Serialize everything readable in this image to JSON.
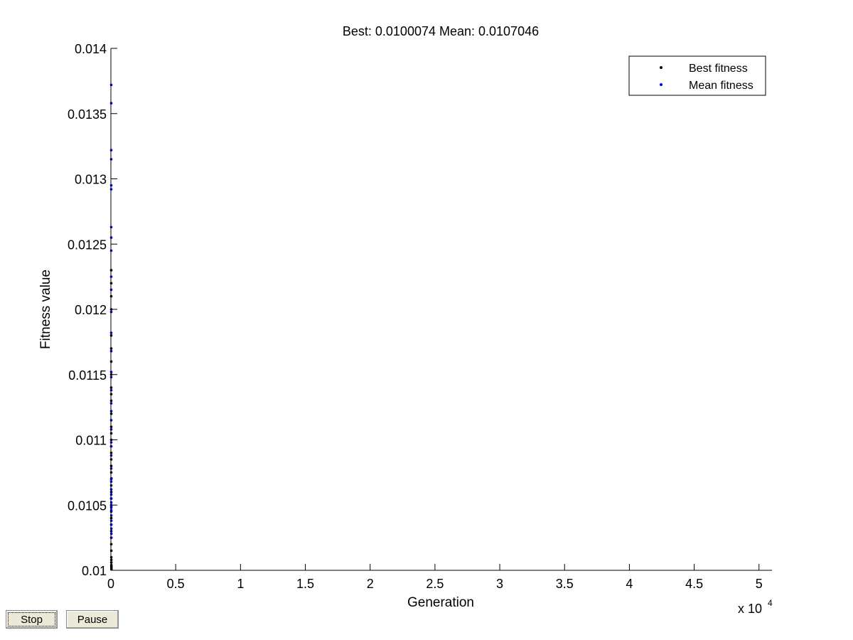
{
  "chart_data": {
    "type": "scatter",
    "title": "Best: 0.0100074 Mean: 0.0107046",
    "xlabel": "Generation",
    "ylabel": "Fitness value",
    "x_multiplier_label": "x 10",
    "x_multiplier_exponent": "4",
    "xlim": [
      0,
      51000
    ],
    "ylim": [
      0.01,
      0.014
    ],
    "xticks": [
      0,
      5000,
      10000,
      15000,
      20000,
      25000,
      30000,
      35000,
      40000,
      45000,
      50000
    ],
    "xtick_labels": [
      "0",
      "0.5",
      "1",
      "1.5",
      "2",
      "2.5",
      "3",
      "3.5",
      "4",
      "4.5",
      "5"
    ],
    "yticks": [
      0.01,
      0.0105,
      0.011,
      0.0115,
      0.012,
      0.0125,
      0.013,
      0.0135,
      0.014
    ],
    "ytick_labels": [
      "0.01",
      "0.0105",
      "0.011",
      "0.0115",
      "0.012",
      "0.0125",
      "0.013",
      "0.0135",
      "0.014"
    ],
    "grid": false,
    "legend_position": "top-right",
    "series": [
      {
        "name": "Best fitness",
        "color": "#000000",
        "x": [
          1,
          2,
          3,
          4,
          5,
          6,
          7,
          8,
          9,
          10,
          11,
          12,
          13,
          14,
          15,
          16,
          17,
          18,
          19,
          20,
          21,
          22,
          23,
          24,
          25,
          26,
          27,
          28,
          29,
          30,
          31,
          32,
          33,
          34,
          35,
          36,
          37,
          38,
          39,
          40
        ],
        "y": [
          0.0123,
          0.0122,
          0.0121,
          0.012,
          0.0118,
          0.0117,
          0.0116,
          0.0115,
          0.0114,
          0.01135,
          0.0113,
          0.0112,
          0.0111,
          0.01105,
          0.011,
          0.01095,
          0.0109,
          0.01085,
          0.0108,
          0.01075,
          0.0107,
          0.01065,
          0.0106,
          0.01055,
          0.0105,
          0.01045,
          0.0104,
          0.01035,
          0.0103,
          0.01025,
          0.0102,
          0.01015,
          0.0101,
          0.01008,
          0.01006,
          0.01004,
          0.01003,
          0.01002,
          0.01001,
          0.0100074
        ]
      },
      {
        "name": "Mean fitness",
        "color": "#0000ff",
        "x": [
          1,
          2,
          3,
          4,
          5,
          6,
          7,
          8,
          9,
          10,
          11,
          12,
          13,
          14,
          15,
          16,
          17,
          18,
          19,
          20,
          21,
          22,
          23,
          24,
          25,
          26,
          27,
          28,
          29,
          30,
          31,
          32,
          33,
          34,
          35,
          36,
          37,
          38,
          39,
          40
        ],
        "y": [
          0.01372,
          0.01358,
          0.01322,
          0.01315,
          0.01295,
          0.01292,
          0.01263,
          0.01255,
          0.01245,
          0.01225,
          0.01215,
          0.01198,
          0.01182,
          0.01168,
          0.01152,
          0.01148,
          0.01138,
          0.01128,
          0.01122,
          0.01115,
          0.01108,
          0.01098,
          0.01095,
          0.01088,
          0.01078,
          0.01068,
          0.01062,
          0.01058,
          0.01055,
          0.01052,
          0.01049,
          0.01048,
          0.01046,
          0.01042,
          0.01038,
          0.01035,
          0.01032,
          0.01028,
          0.01025,
          0.0107046
        ]
      }
    ]
  },
  "buttons": {
    "stop_label": "Stop",
    "pause_label": "Pause"
  }
}
